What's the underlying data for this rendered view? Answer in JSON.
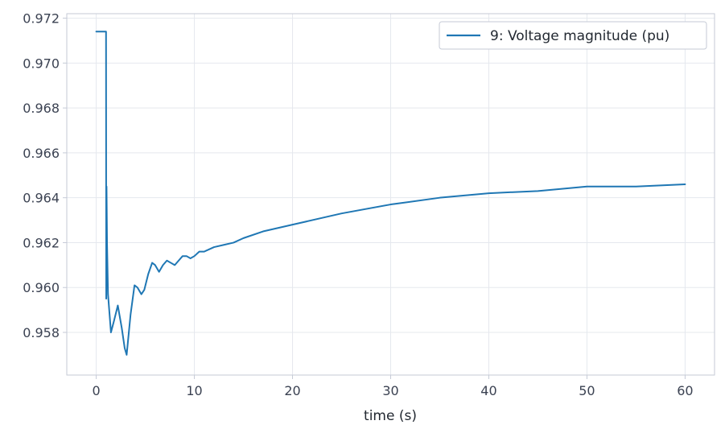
{
  "chart_data": {
    "type": "line",
    "title": "",
    "xlabel": "time (s)",
    "ylabel": "",
    "xlim": [
      -3,
      63
    ],
    "ylim": [
      0.9561,
      0.9722
    ],
    "xticks": [
      0,
      10,
      20,
      30,
      40,
      50,
      60
    ],
    "xtick_labels": [
      "0",
      "10",
      "20",
      "30",
      "40",
      "50",
      "60"
    ],
    "yticks": [
      0.958,
      0.96,
      0.962,
      0.964,
      0.966,
      0.968,
      0.97,
      0.972
    ],
    "ytick_labels": [
      "0.958",
      "0.960",
      "0.962",
      "0.964",
      "0.966",
      "0.968",
      "0.970",
      "0.972"
    ],
    "grid": true,
    "legend_position": "top-right",
    "colors": {
      "series": "#1f77b4",
      "grid": "#e5e8ee",
      "axes": "#c5cad6"
    },
    "series": [
      {
        "name": "9: Voltage magnitude (pu)",
        "x": [
          0,
          1,
          1,
          1.02,
          1.05,
          1.1,
          1.2,
          1.5,
          1.8,
          2.2,
          2.6,
          2.9,
          3.1,
          3.5,
          3.9,
          4.2,
          4.6,
          4.9,
          5.3,
          5.7,
          6.0,
          6.4,
          6.8,
          7.2,
          7.6,
          8.0,
          8.4,
          8.8,
          9.2,
          9.6,
          10,
          10.5,
          11,
          12,
          13,
          14,
          15,
          17,
          20,
          25,
          30,
          35,
          40,
          45,
          50,
          55,
          60
        ],
        "y": [
          0.9714,
          0.9714,
          0.971,
          0.9595,
          0.9645,
          0.962,
          0.9597,
          0.958,
          0.9585,
          0.9592,
          0.9582,
          0.9573,
          0.957,
          0.9588,
          0.9601,
          0.96,
          0.9597,
          0.9599,
          0.9606,
          0.9611,
          0.961,
          0.9607,
          0.961,
          0.9612,
          0.9611,
          0.961,
          0.9612,
          0.9614,
          0.9614,
          0.9613,
          0.9614,
          0.9616,
          0.9616,
          0.9618,
          0.9619,
          0.962,
          0.9622,
          0.9625,
          0.9628,
          0.9633,
          0.9637,
          0.964,
          0.9642,
          0.9643,
          0.9645,
          0.9645,
          0.9646
        ]
      }
    ]
  }
}
